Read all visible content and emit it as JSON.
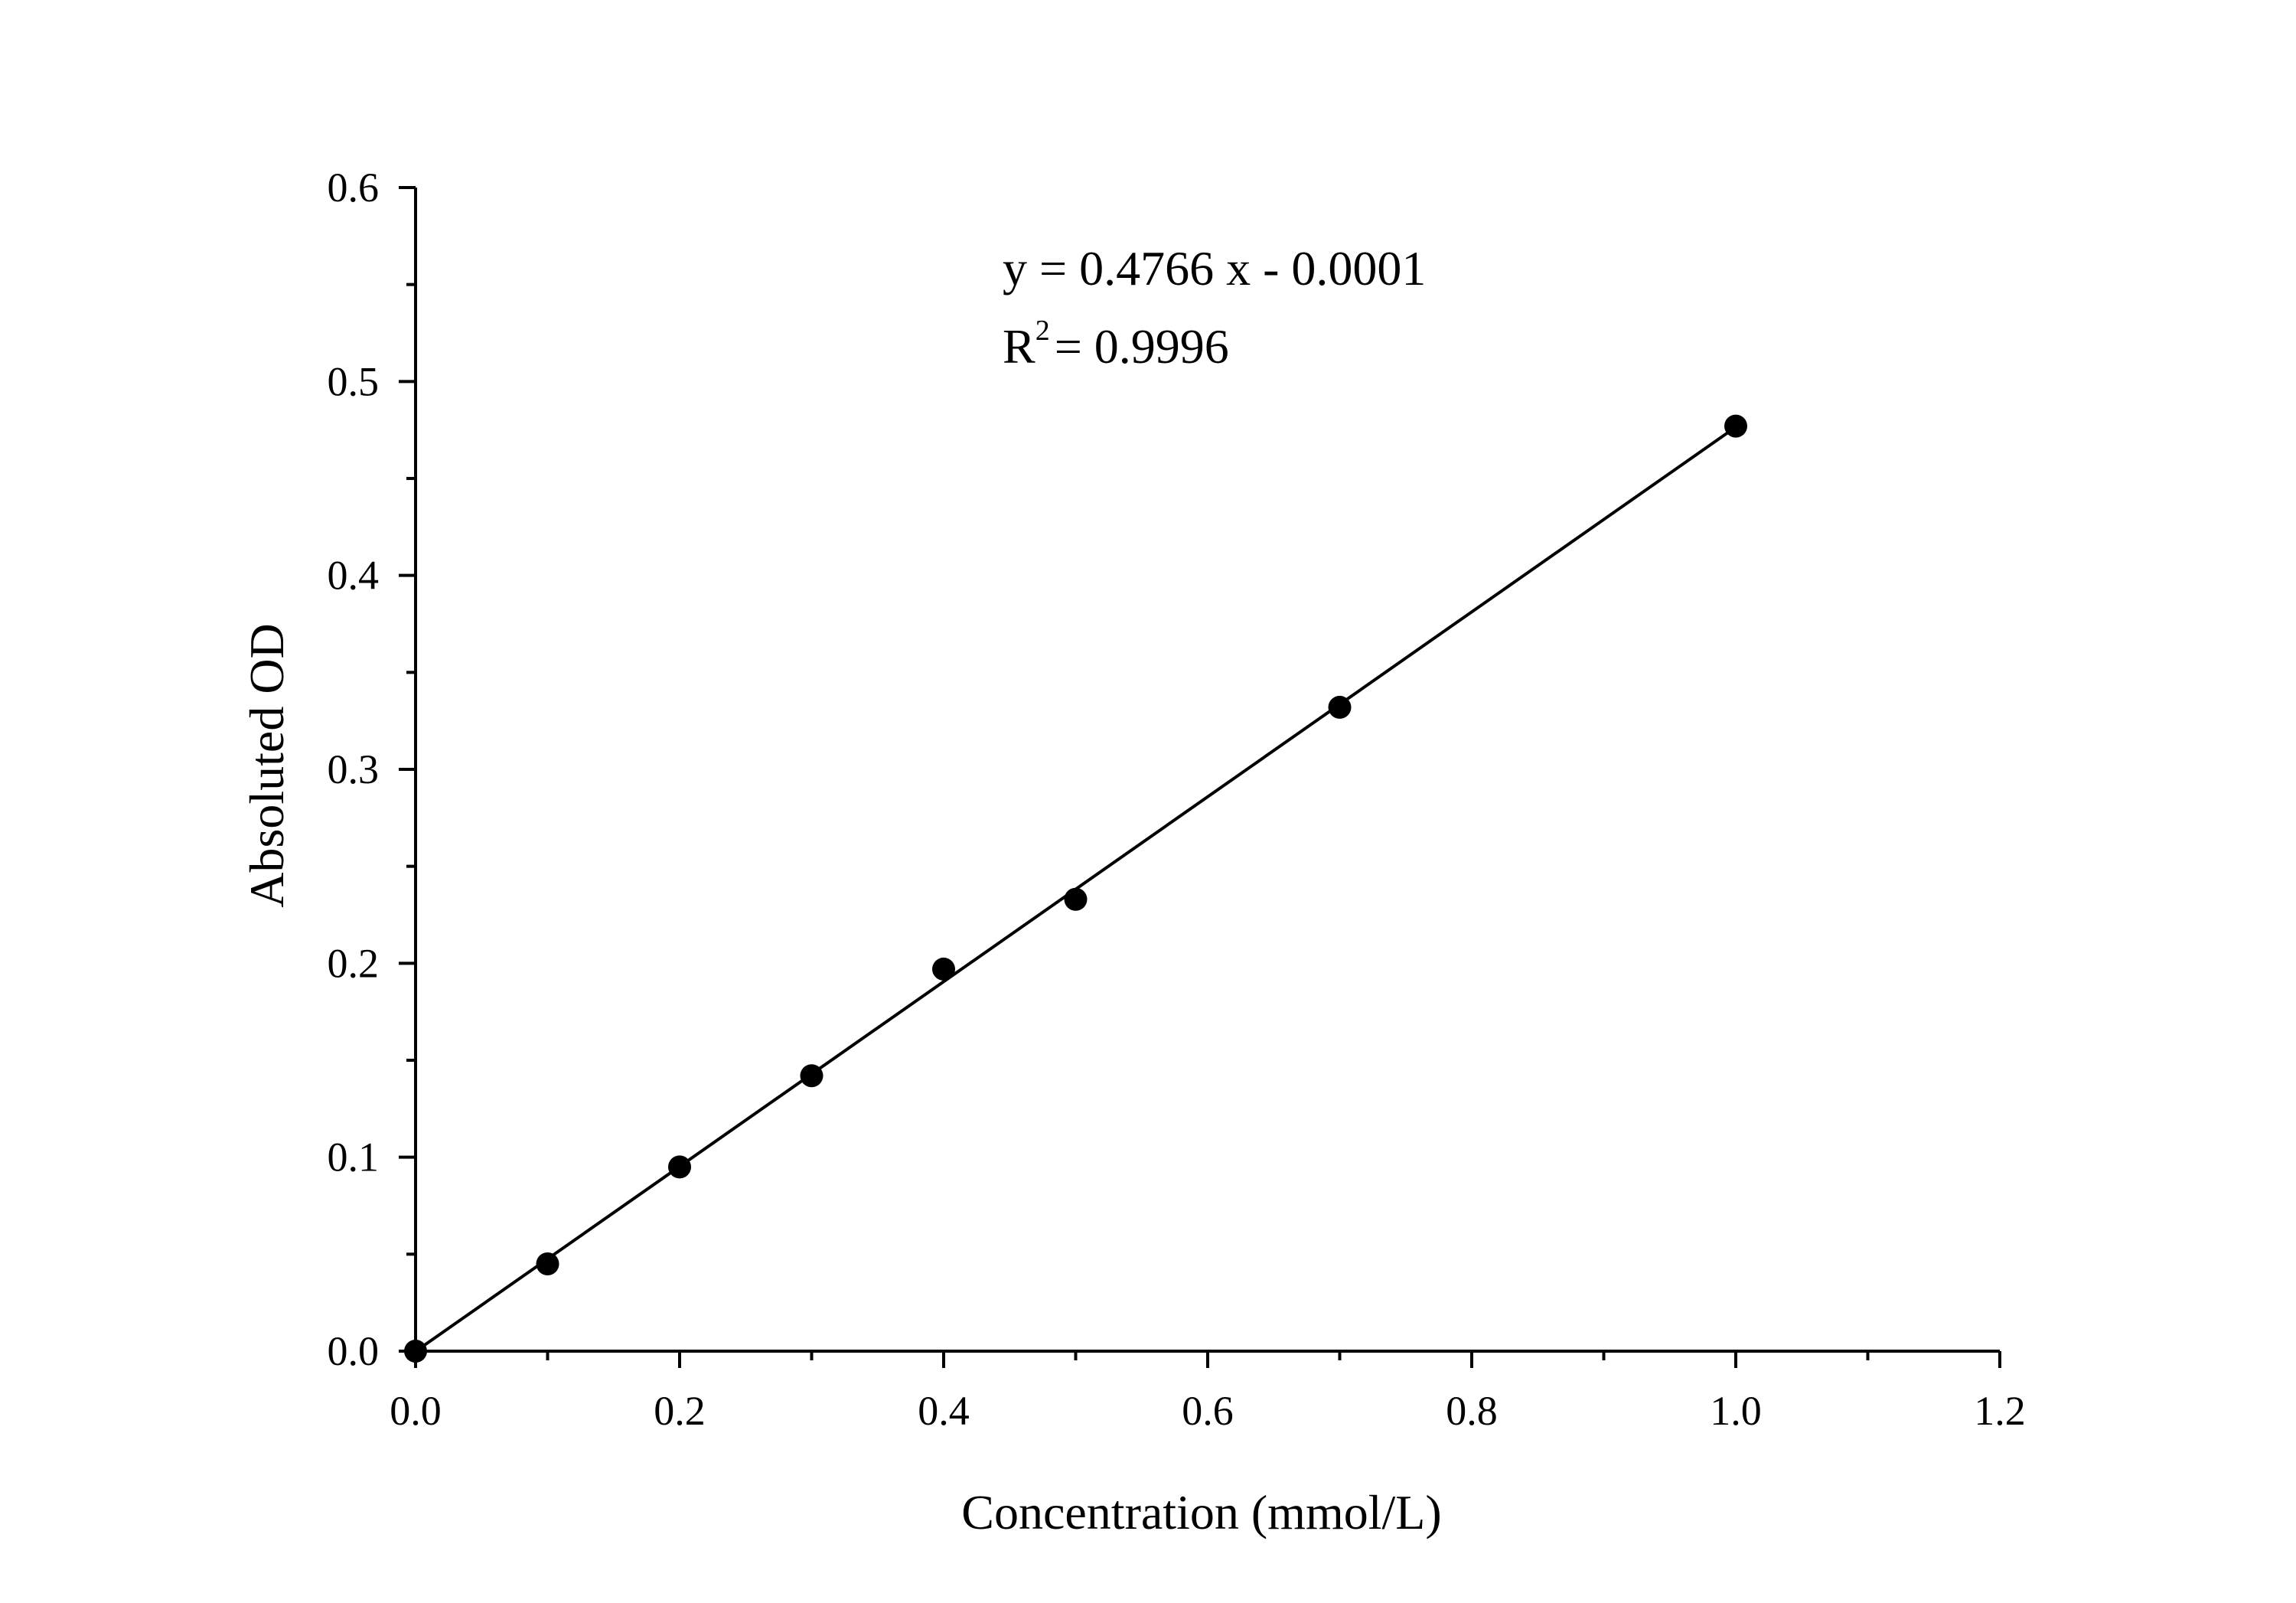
{
  "chart_data": {
    "type": "scatter",
    "xlabel": "Concentration (mmol/L)",
    "ylabel": "Absoluted OD",
    "xlim": [
      0,
      1.2
    ],
    "ylim": [
      0,
      0.6
    ],
    "x_ticks": [
      "0.0",
      "0.2",
      "0.4",
      "0.6",
      "0.8",
      "1.0",
      "1.2"
    ],
    "y_ticks": [
      "0.0",
      "0.1",
      "0.2",
      "0.3",
      "0.4",
      "0.5",
      "0.6"
    ],
    "x_tick_values": [
      0,
      0.2,
      0.4,
      0.6,
      0.8,
      1.0,
      1.2
    ],
    "y_tick_values": [
      0,
      0.1,
      0.2,
      0.3,
      0.4,
      0.5,
      0.6
    ],
    "x_minor_step": 0.1,
    "y_minor_step": 0.05,
    "grid": false,
    "series": [
      {
        "x": [
          0.0,
          0.1,
          0.2,
          0.3,
          0.4,
          0.5,
          0.7,
          1.0
        ],
        "y": [
          0.0,
          0.045,
          0.095,
          0.142,
          0.197,
          0.233,
          0.332,
          0.477
        ],
        "marker": "filled-circle",
        "color": "#000000"
      }
    ],
    "fit": {
      "slope": 0.4766,
      "intercept": -0.0001,
      "x_range": [
        0,
        1.0
      ],
      "color": "#000000"
    },
    "annotations": {
      "equation": "y = 0.4766 x - 0.0001",
      "r2_prefix": "R",
      "r2_exponent": "2",
      "r2_value": "= 0.9996"
    }
  }
}
